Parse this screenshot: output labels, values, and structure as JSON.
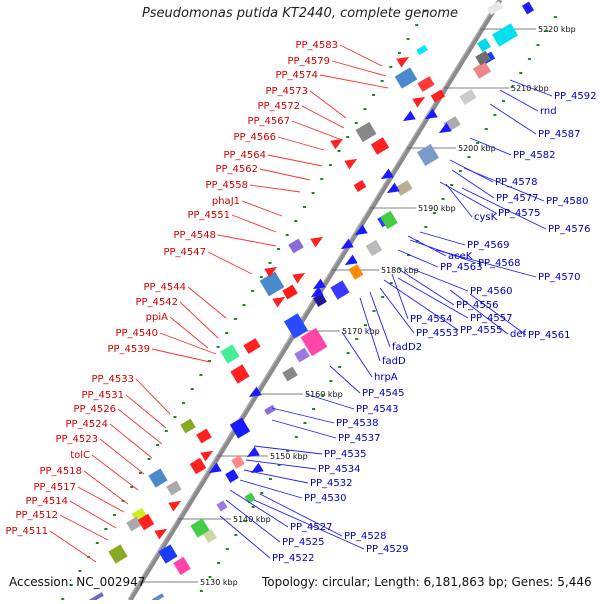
{
  "title": "Pseudomonas putida KT2440, complete genome",
  "accession": "Accession: NC_002947",
  "topology": "Topology: circular; Length: 6,181,863 bp; Genes: 5,446",
  "colors": {
    "left_label": "#e00000",
    "right_label": "#0000cc",
    "backbone": "#888888"
  },
  "ticks": [
    "5220 kbp",
    "5210 kbp",
    "5200 kbp",
    "5190 kbp",
    "5180 kbp",
    "5170 kbp",
    "5160 kbp",
    "5150 kbp",
    "5140 kbp",
    "5130 kbp"
  ],
  "left_labels": [
    "PP_4583",
    "PP_4579",
    "PP_4574",
    "PP_4573",
    "PP_4572",
    "PP_4567",
    "PP_4566",
    "PP_4564",
    "PP_4562",
    "PP_4558",
    "phaJ1",
    "PP_4551",
    "PP_4548",
    "PP_4547",
    "PP_4544",
    "PP_4542",
    "ppiA",
    "PP_4540",
    "PP_4539",
    "PP_4533",
    "PP_4531",
    "PP_4526",
    "PP_4524",
    "PP_4523",
    "tolC",
    "PP_4518",
    "PP_4517",
    "PP_4514",
    "PP_4512",
    "PP_4511"
  ],
  "right_labels": [
    "PP_4592",
    "rnd",
    "PP_4587",
    "PP_4582",
    "PP_4578",
    "PP_4580",
    "PP_4577",
    "cysK",
    "PP_4575",
    "PP_4576",
    "PP_4569",
    "aceK",
    "PP_4568",
    "PP_4563",
    "PP_4570",
    "PP_4560",
    "PP_4556",
    "PP_4557",
    "PP_4554",
    "PP_4555",
    "def",
    "PP_4561",
    "PP_4553",
    "fadD2",
    "fadD",
    "hrpA",
    "PP_4545",
    "PP_4543",
    "PP_4538",
    "PP_4537",
    "PP_4535",
    "PP_4534",
    "PP_4532",
    "PP_4530",
    "PP_4527",
    "PP_4528",
    "PP_4525",
    "PP_4529",
    "PP_4522"
  ]
}
